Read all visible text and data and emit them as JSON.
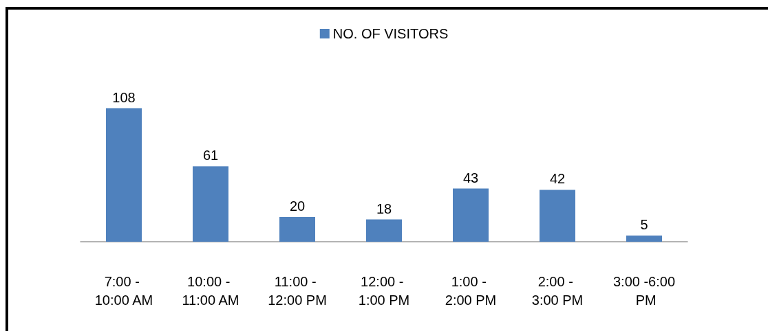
{
  "chart_data": {
    "type": "bar",
    "categories": [
      "7:00 - 10:00 AM",
      "10:00 - 11:00 AM",
      "11:00 - 12:00 PM",
      "12:00 - 1:00 PM",
      "1:00 - 2:00 PM",
      "2:00 - 3:00 PM",
      "3:00 -6:00 PM"
    ],
    "series": [
      {
        "name": "NO. OF VISITORS",
        "color": "#4f81bd",
        "values": [
          108,
          61,
          20,
          18,
          43,
          42,
          5
        ]
      }
    ],
    "data_labels": true,
    "legend": "top"
  }
}
